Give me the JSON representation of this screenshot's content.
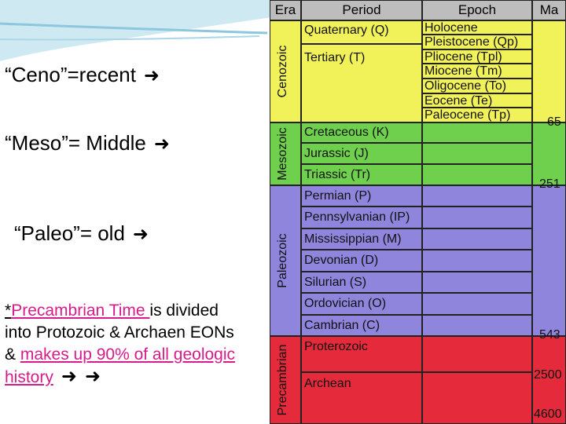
{
  "left": {
    "ceno": "“Ceno”=recent",
    "meso": "“Meso”= Middle",
    "paleo": "“Paleo”= old",
    "note_prefix": "*",
    "note_highlight": "Precambrian Time ",
    "note_mid": "is divided into Protozoic & Archaen EONs & ",
    "note_pink": "makes up 90% of all geologic history"
  },
  "table": {
    "headers": [
      "Era",
      "Period",
      "Epoch",
      "Ma"
    ],
    "eras": [
      "Cenozoic",
      "Mesozoic",
      "Paleozoic",
      "Precambrian"
    ],
    "periods": [
      "Quaternary (Q)",
      "Tertiary (T)",
      "Cretaceous (K)",
      "Jurassic (J)",
      "Triassic (Tr)",
      "Permian (P)",
      "Pennsylvanian (IP)",
      "Mississippian (M)",
      "Devonian (D)",
      "Silurian (S)",
      "Ordovician (O)",
      "Cambrian (C)",
      "Proterozoic",
      "Archean"
    ],
    "epochs": [
      "Holocene",
      "Pleistocene (Qp)",
      "Pliocene (Tpl)",
      "Miocene (Tm)",
      "Oligocene (To)",
      "Eocene (Te)",
      "Paleocene (Tp)"
    ],
    "ma": [
      "65",
      "251",
      "543",
      "2500",
      "4600"
    ],
    "colors": {
      "cenozoic": "#f1f15a",
      "mesozoic": "#6fd04d",
      "paleozoic": "#8f85dc",
      "precambrian": "#e42a3b",
      "header": "#bdbdbd"
    }
  }
}
